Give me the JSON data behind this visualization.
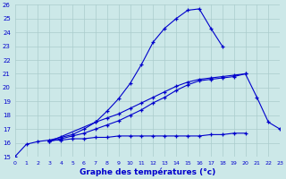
{
  "title": "Graphe des températures (°c)",
  "bg_color": "#cce8e8",
  "grid_color": "#aacccc",
  "line_color": "#0000cc",
  "x_min": 0,
  "x_max": 23,
  "y_min": 15,
  "y_max": 26,
  "lines": [
    {
      "x": [
        0,
        1,
        2,
        3,
        4,
        5,
        6,
        7,
        8,
        9,
        10,
        11,
        12,
        13,
        14,
        15,
        16,
        17,
        18
      ],
      "y": [
        15.0,
        15.9,
        16.1,
        16.2,
        16.4,
        16.6,
        17.0,
        17.5,
        18.3,
        19.2,
        20.3,
        21.7,
        23.3,
        24.3,
        25.0,
        25.6,
        25.7,
        24.3,
        23.0
      ]
    },
    {
      "x": [
        3,
        4,
        5,
        6,
        7,
        8,
        9,
        10,
        11,
        12,
        13,
        14,
        15,
        16,
        17,
        18,
        19,
        20
      ],
      "y": [
        16.1,
        16.3,
        16.5,
        16.7,
        17.0,
        17.3,
        17.6,
        18.0,
        18.4,
        18.9,
        19.3,
        19.8,
        20.2,
        20.5,
        20.6,
        20.7,
        20.8,
        21.0
      ]
    },
    {
      "x": [
        3,
        4,
        5,
        6,
        7,
        8,
        9,
        10,
        11,
        12,
        13,
        14,
        15,
        16,
        17,
        18,
        19,
        20
      ],
      "y": [
        16.2,
        16.2,
        16.3,
        16.3,
        16.4,
        16.4,
        16.5,
        16.5,
        16.5,
        16.5,
        16.5,
        16.5,
        16.5,
        16.5,
        16.6,
        16.6,
        16.7,
        16.7
      ]
    },
    {
      "x": [
        3,
        7,
        8,
        9,
        10,
        11,
        12,
        13,
        14,
        15,
        16,
        17,
        18,
        19,
        20,
        21,
        22,
        23
      ],
      "y": [
        16.1,
        17.5,
        17.8,
        18.1,
        18.5,
        18.9,
        19.3,
        19.7,
        20.1,
        20.4,
        20.6,
        20.7,
        20.8,
        20.9,
        21.0,
        19.3,
        17.5,
        17.0
      ]
    }
  ]
}
